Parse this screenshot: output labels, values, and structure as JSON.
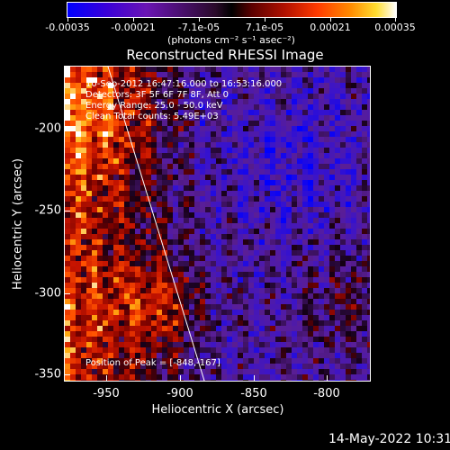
{
  "colorbar": {
    "ticks": [
      "-0.00035",
      "-0.00021",
      "-7.1e-05",
      "7.1e-05",
      "0.00021",
      "0.00035"
    ],
    "units": "(photons cm⁻² s⁻¹ asec⁻²)",
    "colors": [
      "#0000ff",
      "#6a14b4",
      "#000000",
      "#b01000",
      "#ff8a00",
      "#ffffff"
    ]
  },
  "title": "Reconstructed RHESSI Image",
  "annotations": {
    "time_range": "10-Sep-2012 16:47:16.000 to 16:53:16.000",
    "detectors": "Detectors: 3F 5F 6F 7F 8F, Att 0",
    "energy": "Energy Range: 25.0 - 50.0 keV",
    "clean": "Clean    Total counts: 5.49E+03",
    "peak": "Position of Peak = [-848,-167]"
  },
  "axes": {
    "xlabel": "Heliocentric X (arcsec)",
    "ylabel": "Heliocentric Y (arcsec)",
    "xticks": [
      "-950",
      "-900",
      "-850",
      "-800"
    ],
    "yticks": [
      "-200",
      "-250",
      "-300",
      "-350"
    ]
  },
  "footer": {
    "datetime": "14-May-2022 10:31"
  }
}
